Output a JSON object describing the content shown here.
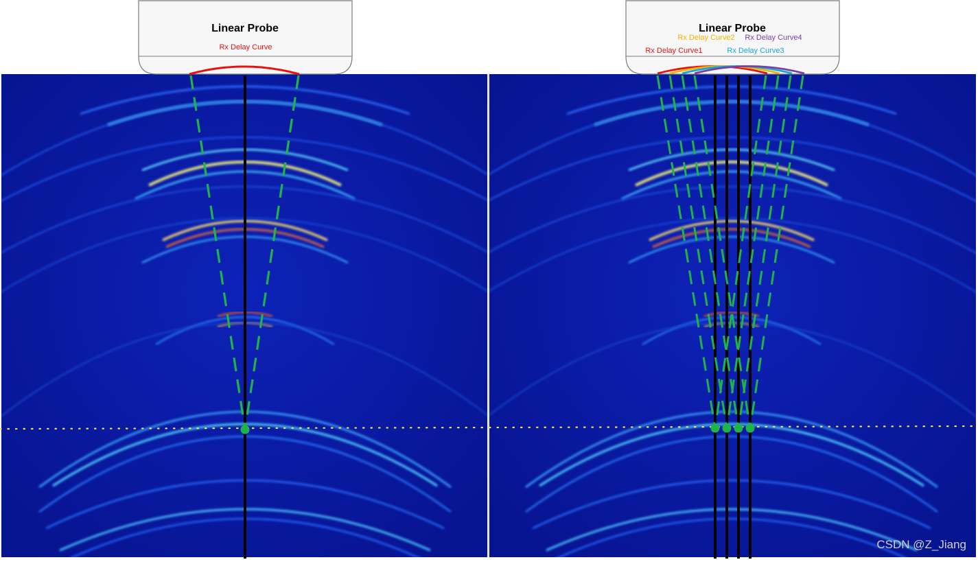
{
  "left_panel": {
    "probe_title": "Linear Probe",
    "curve_label": "Rx Delay Curve",
    "curve_color": "#e81010"
  },
  "right_panel": {
    "probe_title": "Linear Probe",
    "curves": [
      {
        "label": "Rx Delay Curve1",
        "color": "#e81010"
      },
      {
        "label": "Rx Delay Curve2",
        "color": "#f2b200"
      },
      {
        "label": "Rx Delay Curve3",
        "color": "#14a6d8"
      },
      {
        "label": "Rx Delay Curve4",
        "color": "#7a3fa6"
      }
    ]
  },
  "colors": {
    "background": "#0a1aa8",
    "beam_line": "#000000",
    "aperture_line": "#1fb34a",
    "focus_point": "#1fb34a",
    "focal_depth_line": "#f0ea3a"
  },
  "watermark": "CSDN @Z_Jiang"
}
